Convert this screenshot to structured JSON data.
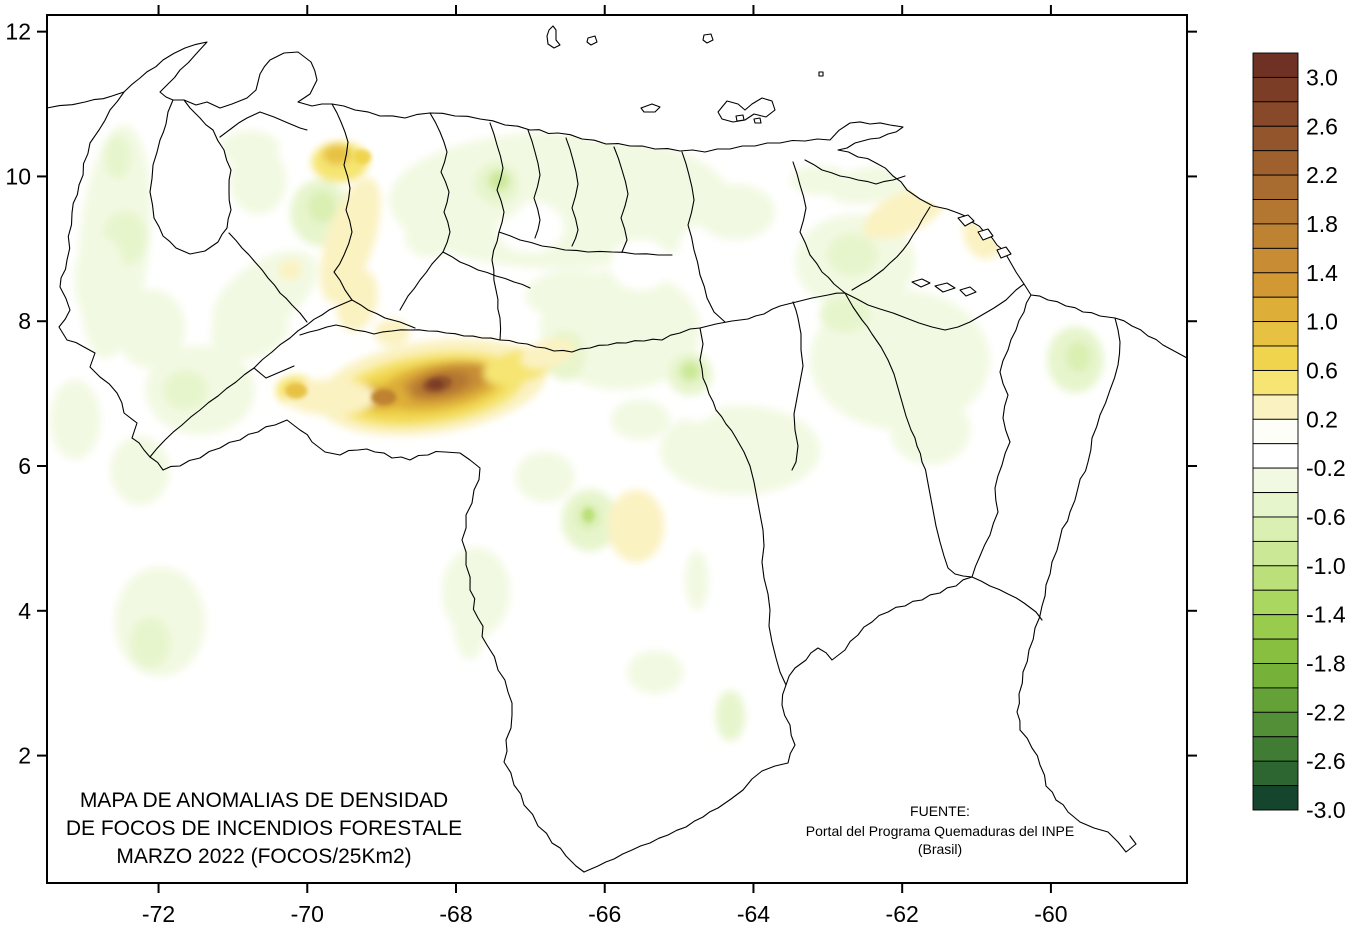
{
  "map": {
    "title": {
      "line1": "MAPA DE ANOMALIAS DE DENSIDAD",
      "line2": "DE FOCOS DE INCENDIOS FORESTALE",
      "line3": "MARZO 2022 (FOCOS/25Km2)"
    },
    "source": {
      "line1": "FUENTE:",
      "line2": "Portal del Programa Quemaduras del INPE",
      "line3": "(Brasil)"
    }
  },
  "axes": {
    "x_ticks": [
      -72,
      -70,
      -68,
      -66,
      -64,
      -62,
      -60
    ],
    "y_ticks": [
      12,
      10,
      8,
      6,
      4,
      2
    ],
    "x_range": [
      -73.5,
      -58.17
    ],
    "y_range": [
      0.24,
      12.23
    ]
  },
  "colorbar": {
    "value_top": 3.2,
    "value_step": 0.2,
    "labels": [
      "3.0",
      "2.6",
      "2.2",
      "1.8",
      "1.4",
      "1.0",
      "0.6",
      "0.2",
      "-0.2",
      "-0.6",
      "-1.0",
      "-1.4",
      "-1.8",
      "-2.2",
      "-2.6",
      "-3.0"
    ],
    "colors": [
      "#6F3124",
      "#7B3D26",
      "#874929",
      "#93552C",
      "#9E612E",
      "#A96C30",
      "#B47732",
      "#BE8233",
      "#C88D34",
      "#D19834",
      "#DDAE38",
      "#E7C142",
      "#F0D44E",
      "#F6E572",
      "#FBF2C2",
      "#FEFEF8",
      "#FFFFFF",
      "#F2F9E2",
      "#E7F5CD",
      "#DAEFB2",
      "#CBE896",
      "#BBE07A",
      "#AAD760",
      "#99CC4C",
      "#88BF40",
      "#76B13A",
      "#64A238",
      "#528F36",
      "#407C33",
      "#2E6632",
      "#16452E"
    ]
  },
  "chart_data": {
    "type": "heatmap",
    "representation": "filled contour anomaly map of fire density over Venezuela",
    "title": "MAPA DE ANOMALIAS DE DENSIDAD DE FOCOS DE INCENDIOS FORESTALE MARZO 2022 (FOCOS/25Km2)",
    "units": "FOCOS/25Km2",
    "source": "FUENTE: Portal del Programa Quemaduras del INPE (Brasil)",
    "xlabel": "",
    "ylabel": "",
    "x_ticks": [
      -72,
      -70,
      -68,
      -66,
      -64,
      -62,
      -60
    ],
    "y_ticks": [
      12,
      10,
      8,
      6,
      4,
      2
    ],
    "xlim": [
      -73.5,
      -58.17
    ],
    "ylim": [
      0.24,
      12.23
    ],
    "colorbar_range": [
      -3.0,
      3.0
    ],
    "colorbar_label_step": 0.4,
    "legend_position": "right",
    "grid": false,
    "max_anomaly": {
      "lon": -68.27,
      "lat": 7.13,
      "value": 3.0
    },
    "anomaly_regions": [
      {
        "lon": -66.6,
        "lat": 9.67,
        "rx": 2.3,
        "ry": 0.95,
        "rot": 0,
        "v": -0.2
      },
      {
        "lon": -65.79,
        "lat": 7.88,
        "rx": 1.08,
        "ry": 0.83,
        "rot": 0,
        "v": -0.2
      },
      {
        "lon": -62.03,
        "lat": 7.47,
        "rx": 1.21,
        "ry": 0.97,
        "rot": 0,
        "v": -0.2
      },
      {
        "lon": -64.18,
        "lat": 6.22,
        "rx": 1.08,
        "ry": 0.62,
        "rot": 0,
        "v": -0.2
      },
      {
        "lon": -65.52,
        "lat": 8.78,
        "rx": 0.4,
        "ry": 0.35,
        "rot": 0,
        "v": -0.1
      },
      {
        "lon": -64.65,
        "lat": 9.05,
        "rx": 0.34,
        "ry": 0.28,
        "rot": 0,
        "v": -0.1
      },
      {
        "lon": -64.76,
        "lat": 6.87,
        "rx": 0.3,
        "ry": 0.25,
        "rot": 0,
        "v": -0.1
      },
      {
        "lon": -67.0,
        "lat": 9.3,
        "rx": 0.45,
        "ry": 0.35,
        "rot": 0,
        "v": -0.1
      },
      {
        "lon": -72.59,
        "lat": 9.1,
        "rx": 0.47,
        "ry": 1.62,
        "rot": 5,
        "v": -0.3
      },
      {
        "lon": -72.55,
        "lat": 10.27,
        "rx": 0.18,
        "ry": 0.3,
        "rot": 0,
        "v": -0.5
      },
      {
        "lon": -72.45,
        "lat": 9.15,
        "rx": 0.3,
        "ry": 0.38,
        "rot": 0,
        "v": -0.5
      },
      {
        "lon": -72.11,
        "lat": 7.9,
        "rx": 0.47,
        "ry": 0.55,
        "rot": 0,
        "v": -0.3
      },
      {
        "lon": -71.44,
        "lat": 7.05,
        "rx": 0.74,
        "ry": 0.62,
        "rot": 0,
        "v": -0.3
      },
      {
        "lon": -71.64,
        "lat": 7.05,
        "rx": 0.3,
        "ry": 0.28,
        "rot": 0,
        "v": -0.5
      },
      {
        "lon": -70.66,
        "lat": 9.95,
        "rx": 0.38,
        "ry": 0.48,
        "rot": 0,
        "v": -0.3
      },
      {
        "lon": -70.77,
        "lat": 10.39,
        "rx": 0.4,
        "ry": 0.25,
        "rot": 0,
        "v": -0.25
      },
      {
        "lon": -70.77,
        "lat": 7.9,
        "rx": 0.54,
        "ry": 0.41,
        "rot": -20,
        "v": -0.25
      },
      {
        "lon": -70.57,
        "lat": 8.38,
        "rx": 0.81,
        "ry": 0.44,
        "rot": -35,
        "v": -0.3
      },
      {
        "lon": -70.23,
        "lat": 8.71,
        "rx": 0.16,
        "ry": 0.14,
        "rot": 0,
        "v": 0.35
      },
      {
        "lon": -69.83,
        "lat": 9.5,
        "rx": 0.4,
        "ry": 0.46,
        "rot": 0,
        "v": -0.45
      },
      {
        "lon": -69.8,
        "lat": 9.58,
        "rx": 0.19,
        "ry": 0.22,
        "rot": 0,
        "v": -0.7
      },
      {
        "lon": -67.67,
        "lat": 9.88,
        "rx": 0.67,
        "ry": 0.55,
        "rot": 0,
        "v": -0.35
      },
      {
        "lon": -67.45,
        "lat": 9.9,
        "rx": 0.3,
        "ry": 0.3,
        "rot": 0,
        "v": -0.55
      },
      {
        "lon": -67.42,
        "lat": 9.94,
        "rx": 0.14,
        "ry": 0.14,
        "rot": 0,
        "v": -0.9
      },
      {
        "lon": -68.35,
        "lat": 9.16,
        "rx": 0.34,
        "ry": 0.28,
        "rot": 0,
        "v": -0.35
      },
      {
        "lon": -65.25,
        "lat": 9.95,
        "rx": 0.47,
        "ry": 0.35,
        "rot": 0,
        "v": -0.3
      },
      {
        "lon": -64.25,
        "lat": 9.51,
        "rx": 0.54,
        "ry": 0.39,
        "rot": 0,
        "v": -0.25
      },
      {
        "lon": -66.4,
        "lat": 8.36,
        "rx": 0.67,
        "ry": 0.35,
        "rot": 0,
        "v": -0.25
      },
      {
        "lon": -66.53,
        "lat": 7.53,
        "rx": 0.27,
        "ry": 0.35,
        "rot": 0,
        "v": -0.5
      },
      {
        "lon": -62.43,
        "lat": 9.88,
        "rx": 0.57,
        "ry": 0.25,
        "rot": -10,
        "v": -0.3
      },
      {
        "lon": -63.1,
        "lat": 9.95,
        "rx": 0.4,
        "ry": 0.21,
        "rot": 0,
        "v": -0.25
      },
      {
        "lon": -62.63,
        "lat": 8.82,
        "rx": 0.81,
        "ry": 0.66,
        "rot": 0,
        "v": -0.25
      },
      {
        "lon": -62.67,
        "lat": 8.92,
        "rx": 0.34,
        "ry": 0.3,
        "rot": 0,
        "v": -0.45
      },
      {
        "lon": -61.96,
        "lat": 9.5,
        "rx": 0.61,
        "ry": 0.28,
        "rot": -25,
        "v": 0.3
      },
      {
        "lon": -60.88,
        "lat": 9.26,
        "rx": 0.3,
        "ry": 0.4,
        "rot": 0,
        "v": 0.3
      },
      {
        "lon": -62.43,
        "lat": 8.02,
        "rx": 0.54,
        "ry": 0.35,
        "rot": 0,
        "v": -0.25
      },
      {
        "lon": -62.77,
        "lat": 8.09,
        "rx": 0.34,
        "ry": 0.25,
        "rot": 0,
        "v": -0.45
      },
      {
        "lon": -59.47,
        "lat": 8.6,
        "rx": 0.32,
        "ry": 0.25,
        "rot": 0,
        "v": -0.3
      },
      {
        "lon": -59.67,
        "lat": 7.47,
        "rx": 0.38,
        "ry": 0.46,
        "rot": 0,
        "v": -0.45
      },
      {
        "lon": -59.63,
        "lat": 7.51,
        "rx": 0.17,
        "ry": 0.21,
        "rot": 0,
        "v": -0.7
      },
      {
        "lon": -61.62,
        "lat": 6.5,
        "rx": 0.54,
        "ry": 0.48,
        "rot": 0,
        "v": -0.2
      },
      {
        "lon": -69.42,
        "lat": 9.12,
        "rx": 0.32,
        "ry": 0.9,
        "rot": 18,
        "v": 0.25
      },
      {
        "lon": -69.56,
        "lat": 10.2,
        "rx": 0.38,
        "ry": 0.28,
        "rot": 0,
        "v": 0.5
      },
      {
        "lon": -69.6,
        "lat": 10.3,
        "rx": 0.19,
        "ry": 0.14,
        "rot": 0,
        "v": 0.85
      },
      {
        "lon": -69.26,
        "lat": 10.27,
        "rx": 0.12,
        "ry": 0.1,
        "rot": 0,
        "v": 0.8
      },
      {
        "lon": -69.33,
        "lat": 8.29,
        "rx": 0.27,
        "ry": 0.44,
        "rot": 12,
        "v": 0.25
      },
      {
        "lon": -68.86,
        "lat": 7.84,
        "rx": 0.24,
        "ry": 0.19,
        "rot": 0,
        "v": 0.4
      },
      {
        "lon": -68.32,
        "lat": 7.09,
        "rx": 1.55,
        "ry": 0.64,
        "rot": -8,
        "v": 0.3
      },
      {
        "lon": -68.35,
        "lat": 7.06,
        "rx": 1.28,
        "ry": 0.5,
        "rot": -8,
        "v": 0.55
      },
      {
        "lon": -68.37,
        "lat": 7.05,
        "rx": 1.08,
        "ry": 0.4,
        "rot": -8,
        "v": 0.75
      },
      {
        "lon": -68.21,
        "lat": 7.11,
        "rx": 0.83,
        "ry": 0.32,
        "rot": -10,
        "v": 1.1
      },
      {
        "lon": -68.13,
        "lat": 7.15,
        "rx": 0.62,
        "ry": 0.23,
        "rot": -12,
        "v": 1.5
      },
      {
        "lon": -68.2,
        "lat": 7.13,
        "rx": 0.39,
        "ry": 0.17,
        "rot": -12,
        "v": 1.9
      },
      {
        "lon": -68.25,
        "lat": 7.13,
        "rx": 0.2,
        "ry": 0.11,
        "rot": -12,
        "v": 2.5
      },
      {
        "lon": -68.27,
        "lat": 7.13,
        "rx": 0.11,
        "ry": 0.07,
        "rot": 0,
        "v": 2.9
      },
      {
        "lon": -68.98,
        "lat": 6.95,
        "rx": 0.35,
        "ry": 0.18,
        "rot": 0,
        "v": 1.2
      },
      {
        "lon": -68.97,
        "lat": 6.95,
        "rx": 0.17,
        "ry": 0.11,
        "rot": 0,
        "v": 1.7
      },
      {
        "lon": -70.15,
        "lat": 7.04,
        "rx": 0.27,
        "ry": 0.21,
        "rot": 0,
        "v": 0.5
      },
      {
        "lon": -70.15,
        "lat": 7.04,
        "rx": 0.15,
        "ry": 0.11,
        "rot": 0,
        "v": 0.9
      },
      {
        "lon": -67.14,
        "lat": 7.38,
        "rx": 0.51,
        "ry": 0.23,
        "rot": -15,
        "v": 0.5
      },
      {
        "lon": -66.76,
        "lat": 7.55,
        "rx": 0.38,
        "ry": 0.19,
        "rot": -15,
        "v": 0.3
      },
      {
        "lon": -69.69,
        "lat": 6.95,
        "rx": 0.61,
        "ry": 0.25,
        "rot": 0,
        "v": 0.3
      },
      {
        "lon": -64.85,
        "lat": 7.27,
        "rx": 0.3,
        "ry": 0.3,
        "rot": 0,
        "v": -0.45
      },
      {
        "lon": -64.85,
        "lat": 7.31,
        "rx": 0.14,
        "ry": 0.14,
        "rot": 0,
        "v": -0.9
      },
      {
        "lon": -65.52,
        "lat": 6.64,
        "rx": 0.4,
        "ry": 0.28,
        "rot": 0,
        "v": -0.25
      },
      {
        "lon": -66.2,
        "lat": 5.25,
        "rx": 0.38,
        "ry": 0.43,
        "rot": 0,
        "v": -0.45
      },
      {
        "lon": -66.22,
        "lat": 5.3,
        "rx": 0.17,
        "ry": 0.19,
        "rot": 0,
        "v": -0.7
      },
      {
        "lon": -66.22,
        "lat": 5.32,
        "rx": 0.08,
        "ry": 0.1,
        "rot": 0,
        "v": -1.0
      },
      {
        "lon": -65.58,
        "lat": 5.17,
        "rx": 0.38,
        "ry": 0.5,
        "rot": 0,
        "v": 0.3
      },
      {
        "lon": -66.8,
        "lat": 5.85,
        "rx": 0.4,
        "ry": 0.35,
        "rot": 0,
        "v": -0.25
      },
      {
        "lon": -67.73,
        "lat": 4.26,
        "rx": 0.46,
        "ry": 0.62,
        "rot": 0,
        "v": -0.25
      },
      {
        "lon": -67.81,
        "lat": 3.98,
        "rx": 0.24,
        "ry": 0.66,
        "rot": 0,
        "v": -0.3
      },
      {
        "lon": -65.32,
        "lat": 3.15,
        "rx": 0.38,
        "ry": 0.3,
        "rot": 0,
        "v": -0.3
      },
      {
        "lon": -64.31,
        "lat": 2.55,
        "rx": 0.2,
        "ry": 0.35,
        "rot": 0,
        "v": -0.4
      },
      {
        "lon": -64.76,
        "lat": 4.42,
        "rx": 0.16,
        "ry": 0.41,
        "rot": 0,
        "v": -0.25
      },
      {
        "lon": -71.98,
        "lat": 3.85,
        "rx": 0.61,
        "ry": 0.76,
        "rot": 0,
        "v": -0.25
      },
      {
        "lon": -72.11,
        "lat": 3.56,
        "rx": 0.27,
        "ry": 0.35,
        "rot": 0,
        "v": -0.45
      },
      {
        "lon": -72.25,
        "lat": 5.94,
        "rx": 0.4,
        "ry": 0.48,
        "rot": 0,
        "v": -0.25
      },
      {
        "lon": -73.12,
        "lat": 6.64,
        "rx": 0.34,
        "ry": 0.55,
        "rot": 0,
        "v": -0.2
      },
      {
        "lon": -72.79,
        "lat": 8.57,
        "rx": 0.34,
        "ry": 0.62,
        "rot": 0,
        "v": -0.2
      }
    ]
  }
}
